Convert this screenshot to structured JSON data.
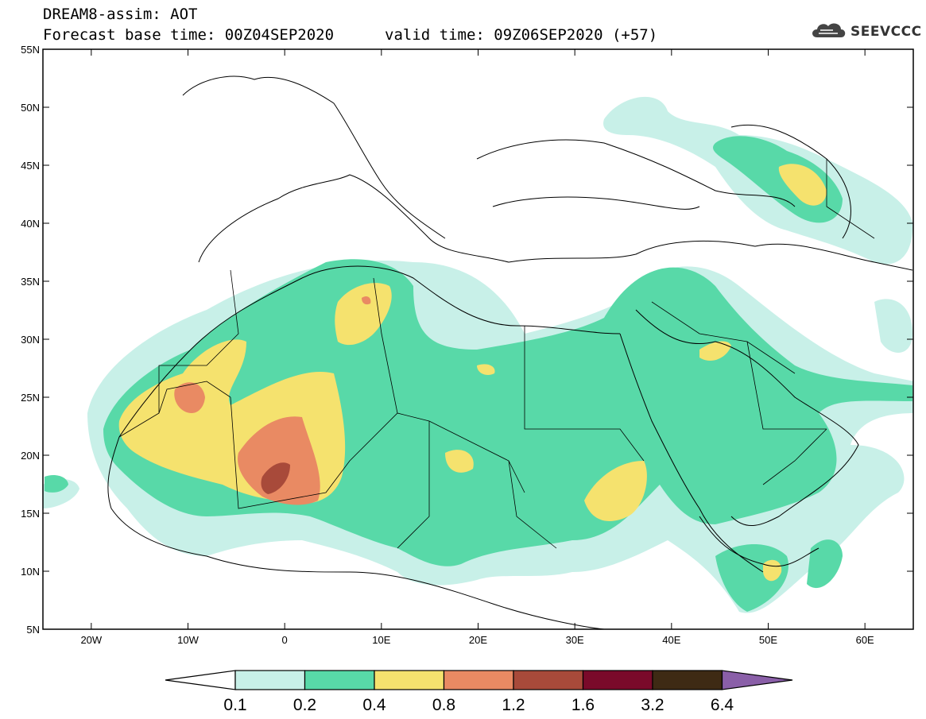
{
  "header": {
    "title": "DREAM8-assim: AOT",
    "base_time": "Forecast base time: 00Z04SEP2020",
    "valid_time": "valid time: 09Z06SEP2020 (+57)"
  },
  "logo": {
    "text": "SEEVCCC",
    "icon": "cloud-icon"
  },
  "map": {
    "lat_labels": [
      "55N",
      "50N",
      "45N",
      "40N",
      "35N",
      "30N",
      "25N",
      "20N",
      "15N",
      "10N",
      "5N"
    ],
    "lon_labels": [
      "20W",
      "10W",
      "0",
      "10E",
      "20E",
      "30E",
      "40E",
      "50E",
      "60E"
    ]
  },
  "legend": {
    "levels": [
      "0.1",
      "0.2",
      "0.4",
      "0.8",
      "1.2",
      "1.6",
      "3.2",
      "6.4"
    ],
    "colors": [
      "#c8f0e8",
      "#58d9a8",
      "#f5e26e",
      "#e98a63",
      "#a84a3a",
      "#7a0a2a",
      "#3e2a14",
      "#8a5fa8"
    ],
    "under_color": "#ffffff",
    "over_color": "#8a5fa8"
  }
}
